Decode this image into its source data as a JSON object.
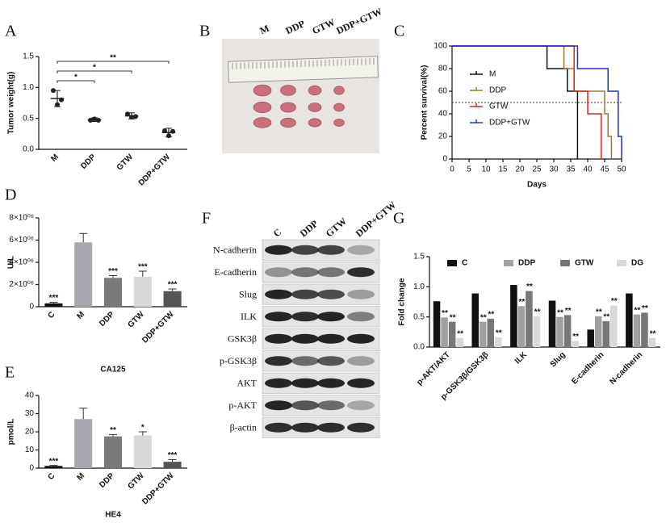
{
  "chart_data": [
    {
      "label": "A",
      "type": "dot",
      "ylabel": "Tumor weight(g)",
      "categories": [
        "M",
        "DDP",
        "GTW",
        "DDP+GTW"
      ],
      "values": [
        0.82,
        0.48,
        0.54,
        0.27
      ],
      "errors": [
        0.13,
        0.03,
        0.05,
        0.07
      ],
      "points": [
        [
          0.95,
          0.72,
          0.8
        ],
        [
          0.47,
          0.49,
          0.47
        ],
        [
          0.57,
          0.52,
          0.53
        ],
        [
          0.3,
          0.22,
          0.29
        ]
      ],
      "color": "#222",
      "ylim": [
        0,
        1.5
      ],
      "yticks": [
        {
          "value": 0,
          "label": "0.0"
        },
        {
          "value": 0.5,
          "label": "0.5"
        },
        {
          "value": 1,
          "label": "1.0"
        },
        {
          "value": 1.5,
          "label": "1.5"
        }
      ],
      "comparisons": [
        {
          "between": [
            "M",
            "DDP+GTW"
          ],
          "label": "**"
        },
        {
          "between": [
            "M",
            "GTW"
          ],
          "label": "*"
        },
        {
          "between": [
            "M",
            "DDP"
          ],
          "label": "*"
        }
      ]
    },
    {
      "label": "B",
      "type": "photo",
      "columns": [
        "M",
        "DDP",
        "GTW",
        "DDP+GTW"
      ]
    },
    {
      "label": "C",
      "type": "step",
      "xlabel": "Days",
      "ylabel": "Percent survival(%)",
      "xlim": [
        0,
        50
      ],
      "xticks": [
        0,
        5,
        10,
        15,
        20,
        25,
        30,
        35,
        40,
        45,
        50
      ],
      "ylim": [
        0,
        100
      ],
      "yticks": [
        0,
        20,
        40,
        60,
        80,
        100
      ],
      "reference_line": 50,
      "legend": "left",
      "series": [
        {
          "name": "M",
          "color": "#111111",
          "x": [
            0,
            28,
            34,
            37
          ],
          "values": [
            100,
            80,
            60,
            0
          ]
        },
        {
          "name": "DDP",
          "color": "#a07828",
          "x": [
            0,
            33,
            36,
            45,
            46,
            47
          ],
          "values": [
            100,
            80,
            60,
            40,
            20,
            0
          ]
        },
        {
          "name": "GTW",
          "color": "#e02020",
          "x": [
            0,
            36,
            40,
            44
          ],
          "values": [
            100,
            60,
            40,
            0
          ]
        },
        {
          "name": "DDP+GTW",
          "color": "#2030d0",
          "x": [
            0,
            37,
            46,
            49,
            50
          ],
          "values": [
            100,
            80,
            60,
            20,
            0
          ]
        }
      ]
    },
    {
      "label": "D",
      "type": "bar",
      "xlabel": "CA125",
      "ylabel": "U/L",
      "categories": [
        "C",
        "M",
        "DDP",
        "GTW",
        "DDP+GTW"
      ],
      "values": [
        300000,
        5800000,
        2600000,
        2700000,
        1400000
      ],
      "errors": [
        100000,
        800000,
        200000,
        500000,
        200000
      ],
      "colors": [
        "#111111",
        "#a8a8b0",
        "#7a7a7a",
        "#d8d8d8",
        "#555555"
      ],
      "annotations": [
        "***",
        null,
        "***",
        "***",
        "***"
      ],
      "ylim": [
        0,
        8000000
      ],
      "yticks": [
        0,
        {
          "value": 2000000,
          "label": "2×10⁰⁶"
        },
        {
          "value": 4000000,
          "label": "4×10⁰⁶"
        },
        {
          "value": 6000000,
          "label": "6×10⁰⁶"
        },
        {
          "value": 8000000,
          "label": "8×10⁰⁶"
        }
      ]
    },
    {
      "label": "E",
      "type": "bar",
      "xlabel": "HE4",
      "ylabel": "pmol/L",
      "categories": [
        "C",
        "M",
        "DDP",
        "GTW",
        "DDP+GTW"
      ],
      "values": [
        1.2,
        27,
        17.5,
        18,
        3.5
      ],
      "errors": [
        0.3,
        6,
        1,
        2,
        1.2
      ],
      "colors": [
        "#111111",
        "#a8a8b0",
        "#7a7a7a",
        "#d8d8d8",
        "#555555"
      ],
      "annotations": [
        "***",
        null,
        "**",
        "*",
        "***"
      ],
      "ylim": [
        0,
        40
      ],
      "yticks": [
        0,
        10,
        20,
        30,
        40
      ]
    },
    {
      "label": "F",
      "type": "blot",
      "columns": [
        "C",
        "DDP",
        "GTW",
        "DDP+GTW"
      ],
      "rows": [
        "N-cadherin",
        "E-cadherin",
        "Slug",
        "ILK",
        "GSK3β",
        "p-GSK3β",
        "AKT",
        "p-AKT",
        "β-actin"
      ]
    },
    {
      "label": "G",
      "type": "grouped_bar",
      "ylabel": "Fold change",
      "legend": "top",
      "categories": [
        "p-AKT/AKT",
        "p-GSK3β/GSK3β",
        "ILK",
        "Slug",
        "E-cadherin",
        "N-cadherin"
      ],
      "ylim": [
        0,
        1.5
      ],
      "yticks": [
        {
          "value": 0,
          "label": "0.0"
        },
        {
          "value": 0.5,
          "label": "0.5"
        },
        {
          "value": 1,
          "label": "1.0"
        },
        {
          "value": 1.5,
          "label": "1.5"
        }
      ],
      "series": [
        {
          "name": "C",
          "color": "#111111",
          "values": [
            0.76,
            0.89,
            1.03,
            0.77,
            0.29,
            0.89
          ]
        },
        {
          "name": "DDP",
          "color": "#a0a0a0",
          "values": [
            0.49,
            0.42,
            0.68,
            0.5,
            0.51,
            0.54
          ],
          "annotations": [
            "**",
            "**",
            "**",
            "**",
            "**",
            "**"
          ]
        },
        {
          "name": "GTW",
          "color": "#777777",
          "values": [
            0.42,
            0.47,
            0.93,
            0.53,
            0.43,
            0.57
          ],
          "annotations": [
            "**",
            "**",
            "**",
            "**",
            "**",
            "**"
          ]
        },
        {
          "name": "DG",
          "color": "#d8d8d8",
          "values": [
            0.15,
            0.16,
            0.51,
            0.1,
            0.69,
            0.15
          ],
          "annotations": [
            "**",
            "**",
            "**",
            "**",
            "**",
            "**"
          ]
        }
      ]
    }
  ]
}
